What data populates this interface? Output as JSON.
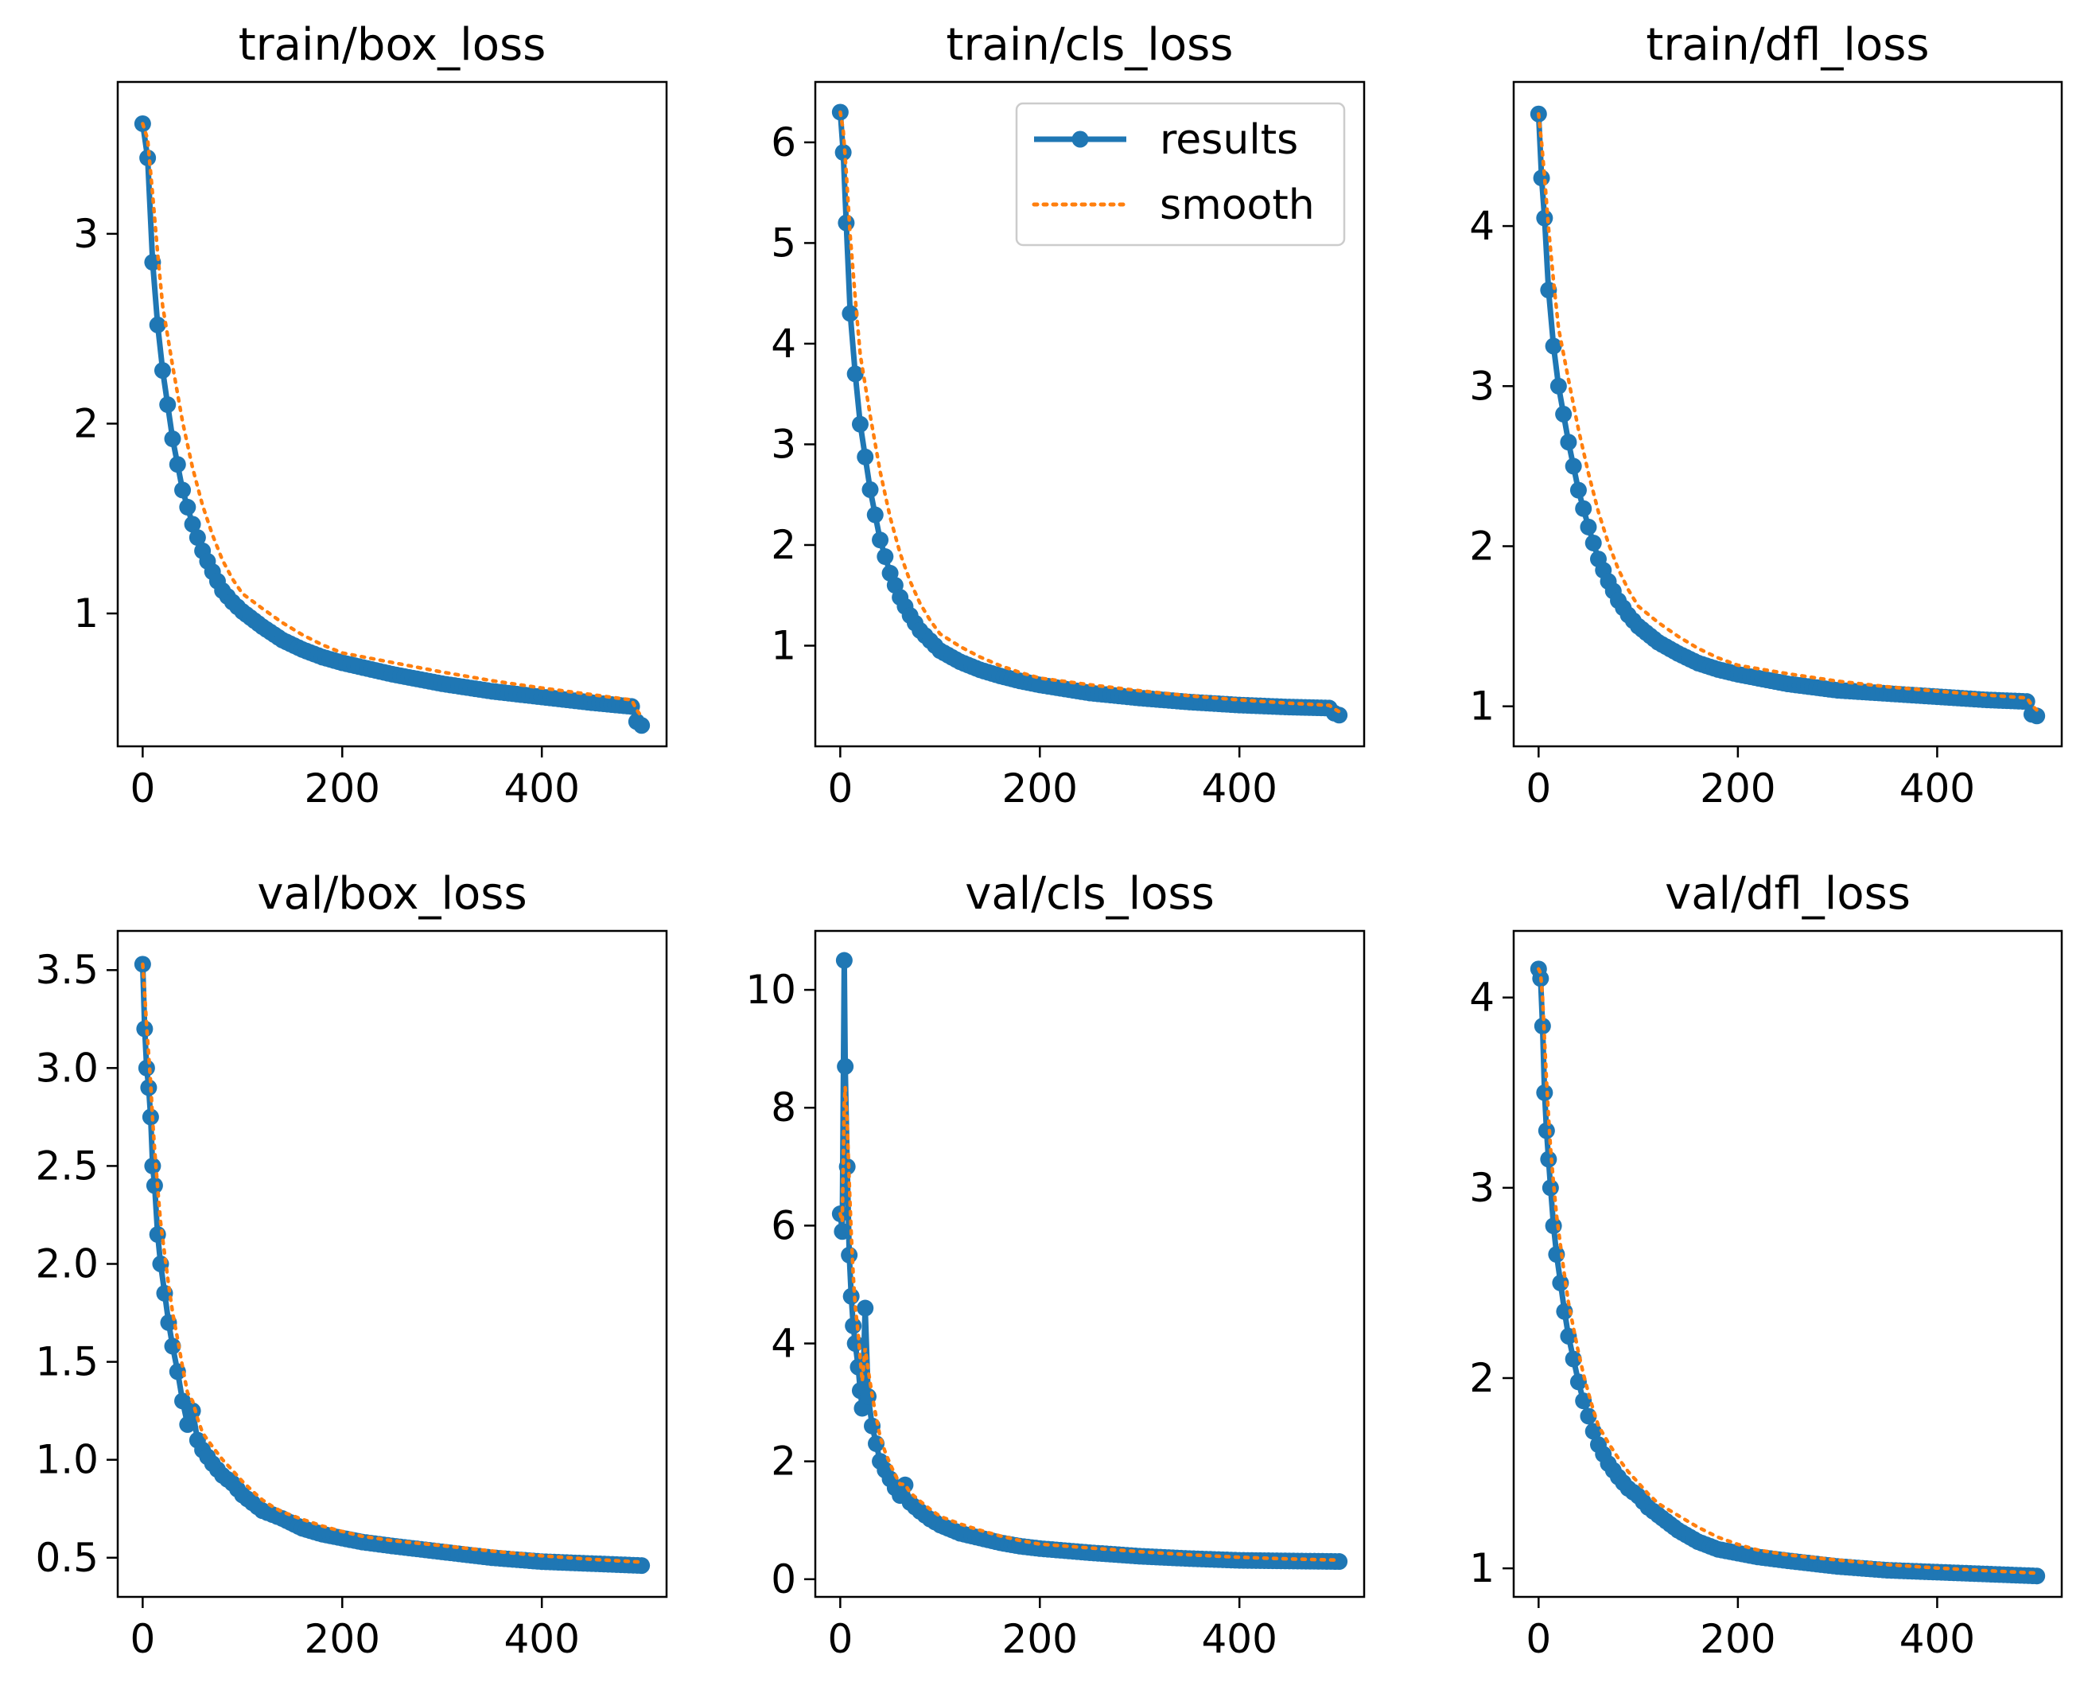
{
  "figure": {
    "colors": {
      "results": "#1f77b4",
      "smooth": "#ff7f0e",
      "axes": "#000000",
      "legend_border": "#cccccc"
    },
    "legend": {
      "placement": "top-right",
      "panel_index": 1,
      "entries": [
        {
          "label": "results",
          "style": "solid-line-with-markers",
          "color": "#1f77b4"
        },
        {
          "label": "smooth",
          "style": "dotted-line",
          "color": "#ff7f0e"
        }
      ]
    }
  },
  "chart_data": [
    {
      "type": "line",
      "title": "train/box_loss",
      "xlim": [
        -25,
        525
      ],
      "ylim": [
        0.3,
        3.8
      ],
      "xticks": [
        0,
        200,
        400
      ],
      "yticks": [
        1,
        2,
        3
      ],
      "ytick_labels": [
        "1",
        "2",
        "3"
      ],
      "grid": false,
      "legend": false,
      "points": [
        [
          0,
          3.58
        ],
        [
          5,
          3.4
        ],
        [
          10,
          2.85
        ],
        [
          15,
          2.52
        ],
        [
          20,
          2.28
        ],
        [
          30,
          1.92
        ],
        [
          40,
          1.65
        ],
        [
          50,
          1.47
        ],
        [
          60,
          1.33
        ],
        [
          70,
          1.22
        ],
        [
          80,
          1.12
        ],
        [
          90,
          1.06
        ],
        [
          100,
          1.01
        ],
        [
          120,
          0.93
        ],
        [
          140,
          0.86
        ],
        [
          160,
          0.81
        ],
        [
          180,
          0.77
        ],
        [
          200,
          0.74
        ],
        [
          250,
          0.68
        ],
        [
          300,
          0.63
        ],
        [
          350,
          0.59
        ],
        [
          400,
          0.56
        ],
        [
          450,
          0.53
        ],
        [
          490,
          0.51
        ],
        [
          495,
          0.43
        ],
        [
          500,
          0.41
        ]
      ]
    },
    {
      "type": "line",
      "title": "train/cls_loss",
      "xlim": [
        -25,
        525
      ],
      "ylim": [
        0.0,
        6.6
      ],
      "xticks": [
        0,
        200,
        400
      ],
      "yticks": [
        1,
        2,
        3,
        4,
        5,
        6
      ],
      "ytick_labels": [
        "1",
        "2",
        "3",
        "4",
        "5",
        "6"
      ],
      "grid": false,
      "legend": true,
      "points": [
        [
          0,
          6.3
        ],
        [
          3,
          5.9
        ],
        [
          6,
          5.2
        ],
        [
          10,
          4.3
        ],
        [
          15,
          3.7
        ],
        [
          20,
          3.2
        ],
        [
          30,
          2.55
        ],
        [
          40,
          2.05
        ],
        [
          50,
          1.72
        ],
        [
          60,
          1.48
        ],
        [
          70,
          1.3
        ],
        [
          80,
          1.15
        ],
        [
          90,
          1.05
        ],
        [
          100,
          0.95
        ],
        [
          120,
          0.84
        ],
        [
          140,
          0.76
        ],
        [
          160,
          0.7
        ],
        [
          180,
          0.65
        ],
        [
          200,
          0.61
        ],
        [
          250,
          0.53
        ],
        [
          300,
          0.48
        ],
        [
          350,
          0.44
        ],
        [
          400,
          0.41
        ],
        [
          450,
          0.39
        ],
        [
          490,
          0.38
        ],
        [
          495,
          0.33
        ],
        [
          500,
          0.31
        ]
      ]
    },
    {
      "type": "line",
      "title": "train/dfl_loss",
      "xlim": [
        -25,
        525
      ],
      "ylim": [
        0.75,
        4.9
      ],
      "xticks": [
        0,
        200,
        400
      ],
      "yticks": [
        1,
        2,
        3,
        4
      ],
      "ytick_labels": [
        "1",
        "2",
        "3",
        "4"
      ],
      "grid": false,
      "legend": false,
      "points": [
        [
          0,
          4.7
        ],
        [
          3,
          4.3
        ],
        [
          6,
          4.05
        ],
        [
          10,
          3.6
        ],
        [
          15,
          3.25
        ],
        [
          20,
          3.0
        ],
        [
          30,
          2.65
        ],
        [
          40,
          2.35
        ],
        [
          50,
          2.12
        ],
        [
          60,
          1.92
        ],
        [
          70,
          1.78
        ],
        [
          80,
          1.66
        ],
        [
          90,
          1.57
        ],
        [
          100,
          1.5
        ],
        [
          120,
          1.4
        ],
        [
          140,
          1.33
        ],
        [
          160,
          1.27
        ],
        [
          180,
          1.23
        ],
        [
          200,
          1.2
        ],
        [
          250,
          1.14
        ],
        [
          300,
          1.1
        ],
        [
          350,
          1.08
        ],
        [
          400,
          1.06
        ],
        [
          450,
          1.04
        ],
        [
          490,
          1.03
        ],
        [
          495,
          0.95
        ],
        [
          500,
          0.94
        ]
      ]
    },
    {
      "type": "line",
      "title": "val/box_loss",
      "xlim": [
        -25,
        525
      ],
      "ylim": [
        0.3,
        3.7
      ],
      "xticks": [
        0,
        200,
        400
      ],
      "yticks": [
        0.5,
        1.0,
        1.5,
        2.0,
        2.5,
        3.0,
        3.5
      ],
      "ytick_labels": [
        "0.5",
        "1.0",
        "1.5",
        "2.0",
        "2.5",
        "3.0",
        "3.5"
      ],
      "grid": false,
      "legend": false,
      "points": [
        [
          0,
          3.53
        ],
        [
          2,
          3.2
        ],
        [
          4,
          3.0
        ],
        [
          6,
          2.9
        ],
        [
          8,
          2.75
        ],
        [
          10,
          2.5
        ],
        [
          12,
          2.4
        ],
        [
          15,
          2.15
        ],
        [
          18,
          2.0
        ],
        [
          22,
          1.85
        ],
        [
          26,
          1.7
        ],
        [
          30,
          1.58
        ],
        [
          35,
          1.45
        ],
        [
          40,
          1.3
        ],
        [
          45,
          1.18
        ],
        [
          50,
          1.25
        ],
        [
          55,
          1.1
        ],
        [
          60,
          1.05
        ],
        [
          70,
          0.98
        ],
        [
          80,
          0.92
        ],
        [
          90,
          0.88
        ],
        [
          100,
          0.82
        ],
        [
          110,
          0.78
        ],
        [
          120,
          0.74
        ],
        [
          130,
          0.72
        ],
        [
          140,
          0.7
        ],
        [
          160,
          0.65
        ],
        [
          180,
          0.62
        ],
        [
          200,
          0.6
        ],
        [
          220,
          0.58
        ],
        [
          250,
          0.56
        ],
        [
          300,
          0.53
        ],
        [
          350,
          0.5
        ],
        [
          400,
          0.48
        ],
        [
          450,
          0.47
        ],
        [
          500,
          0.46
        ]
      ]
    },
    {
      "type": "line",
      "title": "val/cls_loss",
      "xlim": [
        -25,
        525
      ],
      "ylim": [
        -0.3,
        11.0
      ],
      "xticks": [
        0,
        200,
        400
      ],
      "yticks": [
        0,
        2,
        4,
        6,
        8,
        10
      ],
      "ytick_labels": [
        "0",
        "2",
        "4",
        "6",
        "8",
        "10"
      ],
      "grid": false,
      "legend": false,
      "points": [
        [
          0,
          6.2
        ],
        [
          2,
          5.9
        ],
        [
          4,
          10.5
        ],
        [
          5,
          8.7
        ],
        [
          7,
          7.0
        ],
        [
          9,
          5.5
        ],
        [
          11,
          4.8
        ],
        [
          13,
          4.3
        ],
        [
          15,
          4.0
        ],
        [
          18,
          3.6
        ],
        [
          20,
          3.2
        ],
        [
          22,
          2.9
        ],
        [
          25,
          4.6
        ],
        [
          28,
          3.1
        ],
        [
          32,
          2.6
        ],
        [
          36,
          2.3
        ],
        [
          40,
          2.0
        ],
        [
          45,
          1.85
        ],
        [
          50,
          1.7
        ],
        [
          55,
          1.55
        ],
        [
          60,
          1.42
        ],
        [
          65,
          1.6
        ],
        [
          70,
          1.3
        ],
        [
          80,
          1.15
        ],
        [
          90,
          1.02
        ],
        [
          100,
          0.92
        ],
        [
          120,
          0.78
        ],
        [
          140,
          0.7
        ],
        [
          160,
          0.62
        ],
        [
          180,
          0.56
        ],
        [
          200,
          0.52
        ],
        [
          250,
          0.45
        ],
        [
          300,
          0.39
        ],
        [
          350,
          0.35
        ],
        [
          400,
          0.32
        ],
        [
          450,
          0.31
        ],
        [
          500,
          0.3
        ]
      ]
    },
    {
      "type": "line",
      "title": "val/dfl_loss",
      "xlim": [
        -25,
        525
      ],
      "ylim": [
        0.85,
        4.35
      ],
      "xticks": [
        0,
        200,
        400
      ],
      "yticks": [
        1,
        2,
        3,
        4
      ],
      "ytick_labels": [
        "1",
        "2",
        "3",
        "4"
      ],
      "grid": false,
      "legend": false,
      "points": [
        [
          0,
          4.15
        ],
        [
          2,
          4.1
        ],
        [
          4,
          3.85
        ],
        [
          6,
          3.5
        ],
        [
          8,
          3.3
        ],
        [
          10,
          3.15
        ],
        [
          12,
          3.0
        ],
        [
          15,
          2.8
        ],
        [
          18,
          2.65
        ],
        [
          22,
          2.5
        ],
        [
          26,
          2.35
        ],
        [
          30,
          2.22
        ],
        [
          35,
          2.1
        ],
        [
          40,
          1.98
        ],
        [
          45,
          1.88
        ],
        [
          50,
          1.8
        ],
        [
          55,
          1.72
        ],
        [
          60,
          1.65
        ],
        [
          70,
          1.55
        ],
        [
          80,
          1.48
        ],
        [
          90,
          1.42
        ],
        [
          100,
          1.38
        ],
        [
          110,
          1.32
        ],
        [
          120,
          1.28
        ],
        [
          140,
          1.2
        ],
        [
          160,
          1.14
        ],
        [
          180,
          1.1
        ],
        [
          200,
          1.08
        ],
        [
          220,
          1.06
        ],
        [
          250,
          1.04
        ],
        [
          300,
          1.01
        ],
        [
          350,
          0.99
        ],
        [
          400,
          0.98
        ],
        [
          450,
          0.97
        ],
        [
          500,
          0.96
        ]
      ]
    }
  ]
}
